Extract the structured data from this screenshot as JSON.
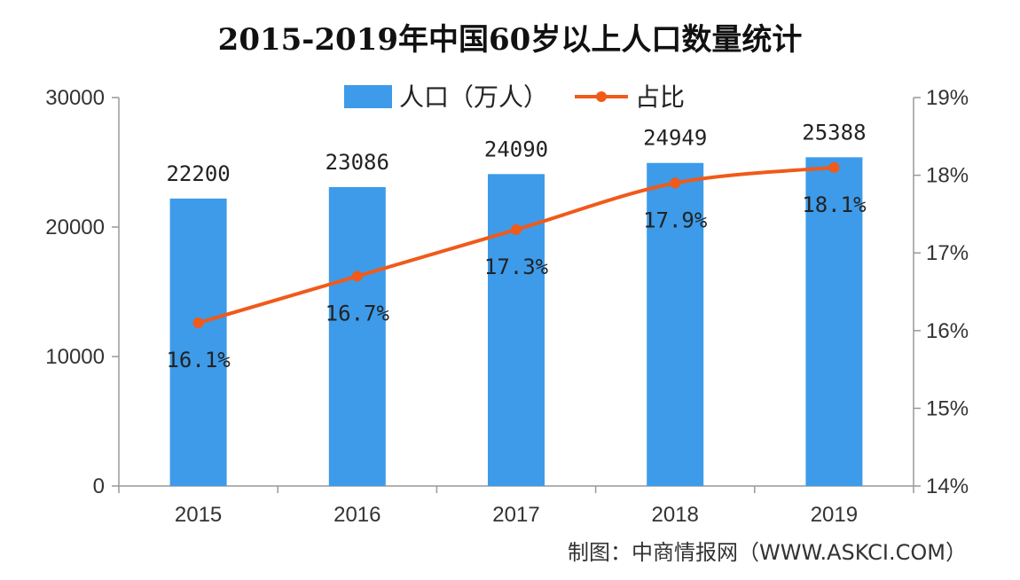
{
  "chart_data": {
    "type": "bar",
    "title": "2015-2019年中国60岁以上人口数量统计",
    "categories": [
      "2015",
      "2016",
      "2017",
      "2018",
      "2019"
    ],
    "series": [
      {
        "name": "人口（万人）",
        "type": "bar",
        "axis": "left",
        "values": [
          22200,
          23086,
          24090,
          24949,
          25388
        ],
        "labels": [
          "22200",
          "23086",
          "24090",
          "24949",
          "25388"
        ],
        "color": "#3d9be9"
      },
      {
        "name": "占比",
        "type": "line",
        "axis": "right",
        "values": [
          16.1,
          16.7,
          17.3,
          17.9,
          18.1
        ],
        "labels": [
          "16.1%",
          "16.7%",
          "17.3%",
          "17.9%",
          "18.1%"
        ],
        "color": "#f05a1a"
      }
    ],
    "left_axis": {
      "ylim": [
        0,
        30000
      ],
      "ticks": [
        0,
        10000,
        20000,
        30000
      ],
      "tick_labels": [
        "0",
        "10000",
        "20000",
        "30000"
      ]
    },
    "right_axis": {
      "ylim": [
        14,
        19
      ],
      "ticks": [
        14,
        15,
        16,
        17,
        18,
        19
      ],
      "tick_labels": [
        "14%",
        "15%",
        "16%",
        "17%",
        "18%",
        "19%"
      ]
    },
    "grid": false,
    "legend_position": "top-center"
  },
  "source": "制图：中商情报网（WWW.ASKCI.COM）"
}
